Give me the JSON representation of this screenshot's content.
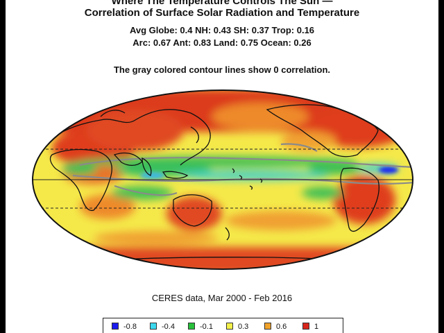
{
  "title": {
    "line1": "Where The Temperature Controls The Sun —",
    "line2": "Correlation of Surface Solar Radiation and Temperature",
    "line3": "Avg Globe: 0.4  NH: 0.43  SH: 0.37  Trop: 0.16",
    "line4": "Arc: 0.67  Ant: 0.83  Land: 0.75  Ocean: 0.26",
    "note": "The gray colored contour lines show 0 correlation."
  },
  "source": "CERES data, Mar 2000 - Feb 2016",
  "map": {
    "projection": "mollweide",
    "latitude_lines_dashed": [
      23.5,
      -23.5
    ],
    "zero_contour_color": "#8a8a8a"
  },
  "legend": {
    "items": [
      {
        "label": "-0.8",
        "color": "#1b1bf0"
      },
      {
        "label": "-0.4",
        "color": "#3cd8ee"
      },
      {
        "label": "-0.1",
        "color": "#27c03a"
      },
      {
        "label": "0.3",
        "color": "#f3f04a"
      },
      {
        "label": "0.6",
        "color": "#f0a22a"
      },
      {
        "label": "1",
        "color": "#d8261c"
      }
    ]
  }
}
